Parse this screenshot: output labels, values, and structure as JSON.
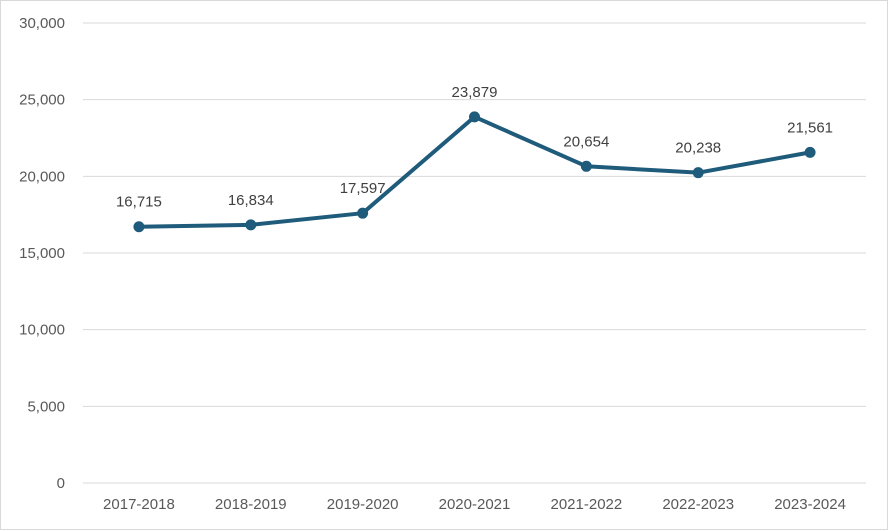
{
  "chart_data": {
    "type": "line",
    "title": "",
    "xlabel": "",
    "ylabel": "",
    "categories": [
      "2017-2018",
      "2018-2019",
      "2019-2020",
      "2020-2021",
      "2021-2022",
      "2022-2023",
      "2023-2024"
    ],
    "series": [
      {
        "values": [
          16715,
          16834,
          17597,
          23879,
          20654,
          20238,
          21561
        ],
        "data_labels": [
          "16,715",
          "16,834",
          "17,597",
          "23,879",
          "20,654",
          "20,238",
          "21,561"
        ],
        "color": "#1f5b7a",
        "marker": "circle"
      }
    ],
    "ylim": [
      0,
      30000
    ],
    "y_ticks": [
      0,
      5000,
      10000,
      15000,
      20000,
      25000,
      30000
    ],
    "y_tick_labels": [
      "0",
      "5,000",
      "10,000",
      "15,000",
      "20,000",
      "25,000",
      "30,000"
    ],
    "grid": true,
    "legend": "none",
    "gridline_color": "#d9d9d9"
  }
}
